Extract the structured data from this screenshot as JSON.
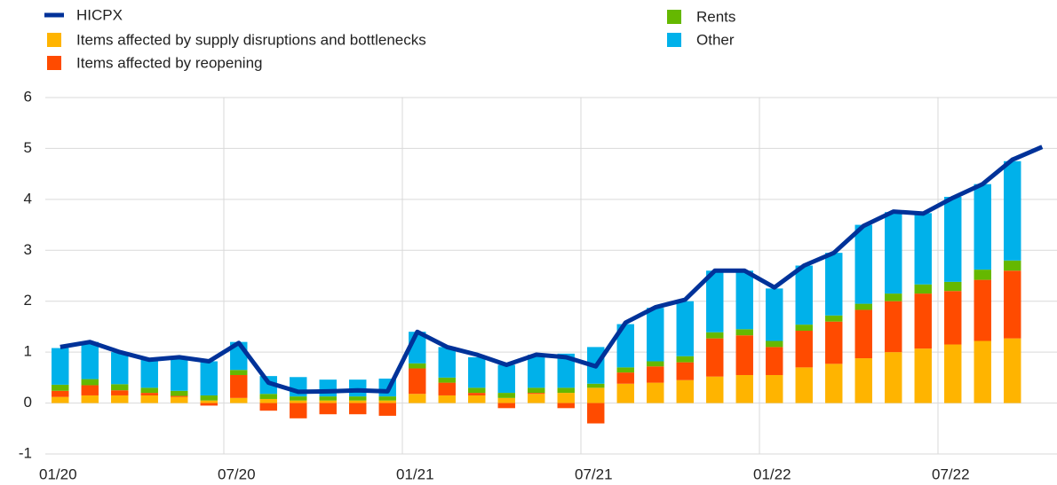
{
  "chart_data": {
    "type": "bar",
    "categories": [
      "01/20",
      null,
      null,
      null,
      null,
      null,
      "07/20",
      null,
      null,
      null,
      null,
      null,
      "01/21",
      null,
      null,
      null,
      null,
      null,
      "07/21",
      null,
      null,
      null,
      null,
      null,
      "01/22",
      null,
      null,
      null,
      null,
      null,
      "07/22",
      null,
      null,
      null
    ],
    "series": [
      {
        "name": "HICPX",
        "type": "line",
        "color": "#003299",
        "values": [
          1.1,
          1.2,
          1.0,
          0.85,
          0.9,
          0.82,
          1.18,
          0.4,
          0.22,
          0.23,
          0.25,
          0.23,
          1.4,
          1.1,
          0.95,
          0.75,
          0.95,
          0.9,
          0.72,
          1.58,
          1.88,
          2.03,
          2.6,
          2.6,
          2.27,
          2.7,
          2.95,
          3.48,
          3.76,
          3.72,
          4.03,
          4.3,
          4.78,
          5.03
        ]
      },
      {
        "name": "Items affected by supply disruptions and bottlenecks",
        "type": "bar",
        "color": "#ffb400",
        "values": [
          0.12,
          0.15,
          0.15,
          0.15,
          0.12,
          0.05,
          0.1,
          0.08,
          0.05,
          0.05,
          0.05,
          0.05,
          0.18,
          0.15,
          0.15,
          0.1,
          0.18,
          0.2,
          0.3,
          0.38,
          0.4,
          0.45,
          0.52,
          0.55,
          0.55,
          0.7,
          0.77,
          0.88,
          1.0,
          1.07,
          1.15,
          1.22,
          1.27,
          null
        ]
      },
      {
        "name": "Items affected by reopening",
        "type": "bar",
        "color": "#ff4b00",
        "values": [
          0.12,
          0.2,
          0.1,
          0.05,
          0.02,
          -0.05,
          0.45,
          -0.15,
          -0.3,
          -0.22,
          -0.22,
          -0.25,
          0.5,
          0.25,
          0.05,
          -0.1,
          0.02,
          -0.1,
          -0.4,
          0.22,
          0.32,
          0.35,
          0.75,
          0.78,
          0.55,
          0.72,
          0.83,
          0.95,
          1.0,
          1.08,
          1.05,
          1.2,
          1.33,
          null
        ]
      },
      {
        "name": "Rents",
        "type": "bar",
        "color": "#65b800",
        "values": [
          0.12,
          0.12,
          0.12,
          0.1,
          0.1,
          0.1,
          0.1,
          0.1,
          0.08,
          0.08,
          0.08,
          0.08,
          0.1,
          0.1,
          0.1,
          0.1,
          0.1,
          0.1,
          0.08,
          0.1,
          0.1,
          0.12,
          0.12,
          0.12,
          0.12,
          0.12,
          0.12,
          0.12,
          0.15,
          0.18,
          0.18,
          0.2,
          0.2,
          null
        ]
      },
      {
        "name": "Other",
        "type": "bar",
        "color": "#00b1ea",
        "values": [
          0.72,
          0.73,
          0.63,
          0.55,
          0.65,
          0.67,
          0.55,
          0.35,
          0.38,
          0.33,
          0.33,
          0.35,
          0.62,
          0.6,
          0.6,
          0.55,
          0.65,
          0.67,
          0.72,
          0.85,
          1.05,
          1.08,
          1.21,
          1.15,
          1.03,
          1.16,
          1.23,
          1.55,
          1.6,
          1.4,
          1.67,
          1.68,
          1.95,
          null
        ]
      }
    ],
    "ylim": [
      -1,
      6
    ],
    "yticks": [
      -1,
      0,
      1,
      2,
      3,
      4,
      5,
      6
    ],
    "grid": true
  }
}
